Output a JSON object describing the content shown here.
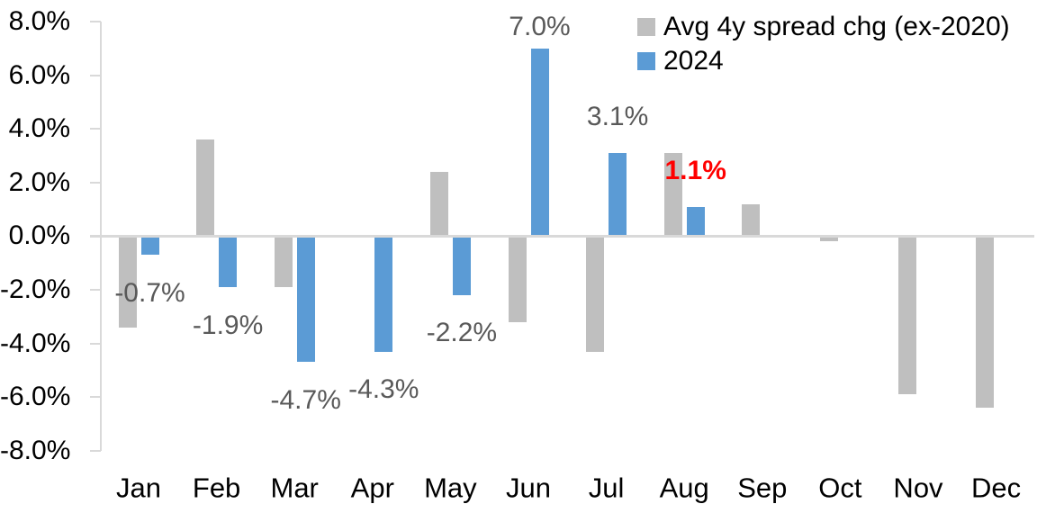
{
  "chart_data": {
    "type": "bar",
    "title": "",
    "xlabel": "",
    "ylabel": "",
    "categories": [
      "Jan",
      "Feb",
      "Mar",
      "Apr",
      "May",
      "Jun",
      "Jul",
      "Aug",
      "Sep",
      "Oct",
      "Nov",
      "Dec"
    ],
    "series": [
      {
        "name": "Avg 4y spread chg (ex-2020)",
        "color": "#BFBFBF",
        "values": [
          -3.4,
          3.6,
          -1.9,
          0.0,
          2.4,
          -3.2,
          -4.3,
          3.1,
          1.2,
          -0.2,
          -5.9,
          -6.4
        ]
      },
      {
        "name": "2024",
        "color": "#5B9BD5",
        "values": [
          -0.7,
          -1.9,
          -4.7,
          -4.3,
          -2.2,
          7.0,
          3.1,
          1.1,
          null,
          null,
          null,
          null
        ]
      }
    ],
    "data_labels": {
      "series": "2024",
      "labels": [
        "-0.7%",
        "-1.9%",
        "-4.7%",
        "-4.3%",
        "-2.2%",
        "7.0%",
        "3.1%",
        "1.1%",
        null,
        null,
        null,
        null
      ],
      "default_color": "#595959",
      "highlight": {
        "index": 7,
        "color": "#FF0000",
        "bold": true
      }
    },
    "y_axis": {
      "min": -8,
      "max": 8,
      "tick_step": 2,
      "ticks": [
        "8.0%",
        "6.0%",
        "4.0%",
        "2.0%",
        "0.0%",
        "-2.0%",
        "-4.0%",
        "-6.0%",
        "-8.0%"
      ]
    },
    "legend": {
      "position": "top-right",
      "entries": [
        {
          "label": "Avg 4y spread chg (ex-2020)",
          "color": "#BFBFBF"
        },
        {
          "label": "2024",
          "color": "#5B9BD5"
        }
      ]
    },
    "grid": false,
    "axis_color": "#D9D9D9",
    "text_color": "#000000"
  }
}
